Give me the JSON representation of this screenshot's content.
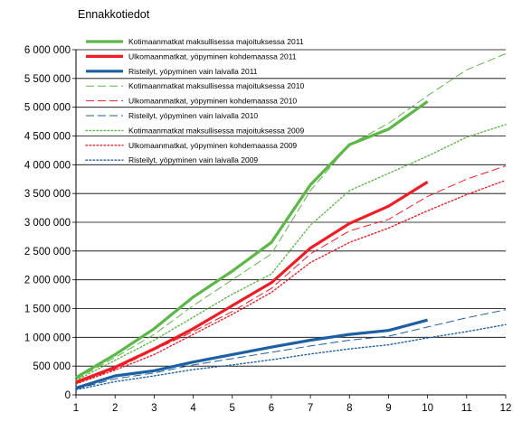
{
  "chart_data": {
    "type": "line",
    "title": "Ennakkotiedot",
    "xlabel": "",
    "ylabel": "",
    "ylim": [
      0,
      6000000
    ],
    "xlim": [
      1,
      12
    ],
    "grid": true,
    "legend_position": "top-left",
    "x_ticks": [
      "1",
      "2",
      "3",
      "4",
      "5",
      "6",
      "7",
      "8",
      "9",
      "10",
      "11",
      "12"
    ],
    "y_ticks": [
      "0",
      "500 000",
      "1 000 000",
      "1 500 000",
      "2 000 000",
      "2 500 000",
      "3 000 000",
      "3 500 000",
      "4 000 000",
      "4 500 000",
      "5 000 000",
      "5 500 000",
      "6 000 000"
    ],
    "y_tick_values": [
      0,
      500000,
      1000000,
      1500000,
      2000000,
      2500000,
      3000000,
      3500000,
      4000000,
      4500000,
      5000000,
      5500000,
      6000000
    ],
    "series": [
      {
        "name": "Kotimaanmatkat maksullisessa majoituksessa 2011",
        "color": "#5cb846",
        "style": "solid-thick",
        "x": [
          1,
          2,
          3,
          4,
          5,
          6,
          7,
          8,
          9,
          10
        ],
        "values": [
          300000,
          700000,
          1150000,
          1700000,
          2150000,
          2650000,
          3650000,
          4350000,
          4620000,
          5100000
        ]
      },
      {
        "name": "Ulkomaanmatkat, yöpyminen kohdemaassa 2011",
        "color": "#ee1c25",
        "style": "solid-thick",
        "x": [
          1,
          2,
          3,
          4,
          5,
          6,
          7,
          8,
          9,
          10
        ],
        "values": [
          220000,
          480000,
          800000,
          1150000,
          1550000,
          1950000,
          2550000,
          2980000,
          3280000,
          3700000
        ]
      },
      {
        "name": "Risteilyt, yöpyminen vain laivalla 2011",
        "color": "#1c5fa3",
        "style": "solid-thick",
        "x": [
          1,
          2,
          3,
          4,
          5,
          6,
          7,
          8,
          9,
          10
        ],
        "values": [
          120000,
          330000,
          420000,
          570000,
          700000,
          830000,
          950000,
          1050000,
          1120000,
          1300000
        ]
      },
      {
        "name": "Kotimaanmatkat maksullisessa majoituksessa 2010",
        "color": "#5cb846",
        "style": "dashed",
        "x": [
          1,
          2,
          3,
          4,
          5,
          6,
          7,
          8,
          9,
          10,
          11,
          12
        ],
        "values": [
          270000,
          650000,
          1050000,
          1550000,
          2000000,
          2450000,
          3550000,
          4350000,
          4720000,
          5200000,
          5650000,
          5930000
        ]
      },
      {
        "name": "Ulkomaanmatkat, yöpyminen kohdemaassa 2010",
        "color": "#ee1c25",
        "style": "dashed",
        "x": [
          1,
          2,
          3,
          4,
          5,
          6,
          7,
          8,
          9,
          10,
          11,
          12
        ],
        "values": [
          200000,
          450000,
          780000,
          1100000,
          1450000,
          1850000,
          2450000,
          2850000,
          3050000,
          3450000,
          3750000,
          3980000
        ]
      },
      {
        "name": "Risteilyt, yöpyminen vain laivalla 2010",
        "color": "#1c5fa3",
        "style": "dashed",
        "x": [
          1,
          2,
          3,
          4,
          5,
          6,
          7,
          8,
          9,
          10,
          11,
          12
        ],
        "values": [
          100000,
          280000,
          380000,
          520000,
          630000,
          740000,
          850000,
          950000,
          1020000,
          1180000,
          1340000,
          1480000
        ]
      },
      {
        "name": "Kotimaanmatkat maksullisessa majoituksessa 2009",
        "color": "#5cb846",
        "style": "dotted",
        "x": [
          1,
          2,
          3,
          4,
          5,
          6,
          7,
          8,
          9,
          10,
          11,
          12
        ],
        "values": [
          250000,
          600000,
          950000,
          1350000,
          1750000,
          2100000,
          2950000,
          3550000,
          3850000,
          4150000,
          4480000,
          4700000
        ]
      },
      {
        "name": "Ulkomaanmatkat, yöpyminen kohdemaassa 2009",
        "color": "#ee1c25",
        "style": "dotted",
        "x": [
          1,
          2,
          3,
          4,
          5,
          6,
          7,
          8,
          9,
          10,
          11,
          12
        ],
        "values": [
          190000,
          430000,
          700000,
          1050000,
          1400000,
          1780000,
          2300000,
          2650000,
          2900000,
          3200000,
          3480000,
          3730000
        ]
      },
      {
        "name": "Risteilyt, yöpyminen vain laivalla 2009",
        "color": "#1c5fa3",
        "style": "dotted",
        "x": [
          1,
          2,
          3,
          4,
          5,
          6,
          7,
          8,
          9,
          10,
          11,
          12
        ],
        "values": [
          90000,
          230000,
          330000,
          440000,
          520000,
          610000,
          710000,
          800000,
          870000,
          990000,
          1100000,
          1220000
        ]
      }
    ]
  }
}
